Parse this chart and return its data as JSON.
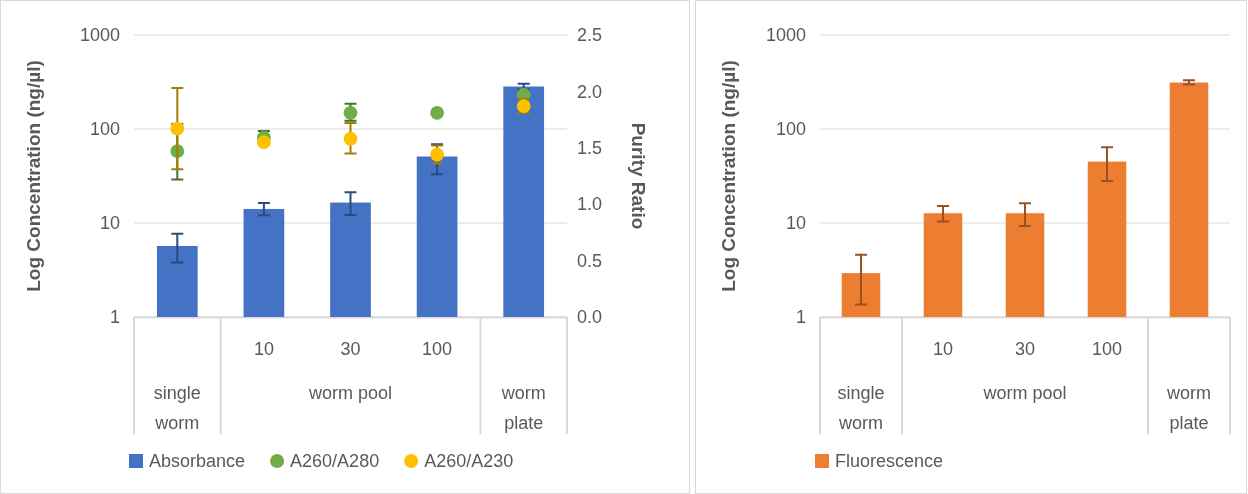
{
  "chart_data": [
    {
      "type": "bar",
      "ylabel": "Log Concentration (ng/µl)",
      "y2label": "Purity Ratio",
      "log": "y",
      "grid": "y",
      "legend": "bottom",
      "marker": "circle",
      "categories": [
        "single worm",
        "10",
        "30",
        "100",
        "worm plate"
      ],
      "annotations": [
        "worm pool"
      ],
      "ylim": [
        1,
        1000
      ],
      "yticks": [
        1,
        10,
        100,
        1000
      ],
      "y2lim": [
        0,
        2.5
      ],
      "y2ticks": [
        {
          "value": 0,
          "label": "0.0"
        },
        {
          "value": 0.5,
          "label": "0.5"
        },
        {
          "value": 1,
          "label": "1.0"
        },
        {
          "value": 1.5,
          "label": "1.5"
        },
        {
          "value": 2,
          "label": "2.0"
        },
        {
          "value": 2.5,
          "label": "2.5"
        }
      ],
      "series": [
        {
          "name": "Absorbance",
          "color": "#4472c4",
          "values": [
            5.7,
            14.1,
            16.5,
            51,
            283
          ],
          "errors": [
            [
              3.8,
              7.7
            ],
            [
              12.1,
              16.3
            ],
            [
              12.2,
              21.3
            ],
            [
              33,
              69
            ],
            [
              263,
              303
            ]
          ]
        },
        {
          "name": "A260/A280",
          "type": "scatter",
          "axis": "y2",
          "color": "#70ad47",
          "values": [
            1.47,
            1.59,
            1.81,
            1.81,
            1.97
          ],
          "errors": [
            [
              1.22,
              1.71
            ],
            [
              1.53,
              1.65
            ],
            [
              1.74,
              1.89
            ],
            null,
            null
          ]
        },
        {
          "name": "A260/A230",
          "type": "scatter",
          "axis": "y2",
          "color": "#ffc000",
          "values": [
            1.67,
            1.55,
            1.58,
            1.44,
            1.87
          ],
          "errors": [
            [
              1.31,
              2.03
            ],
            null,
            [
              1.45,
              1.72
            ],
            [
              1.36,
              1.52
            ],
            [
              1.81,
              1.93
            ]
          ]
        }
      ]
    },
    {
      "type": "bar",
      "ylabel": "Log Concentration (ng/µl)",
      "log": "y",
      "grid": "y",
      "legend": "bottom",
      "categories": [
        "single worm",
        "10",
        "30",
        "100",
        "worm plate"
      ],
      "annotations": [
        "worm pool"
      ],
      "ylim": [
        1,
        1000
      ],
      "yticks": [
        1,
        10,
        100,
        1000
      ],
      "series": [
        {
          "name": "Fluorescence",
          "color": "#ed7d31",
          "values": [
            2.93,
            12.7,
            12.7,
            45,
            312
          ],
          "errors": [
            [
              1.36,
              4.6
            ],
            [
              10.4,
              15.2
            ],
            [
              9.3,
              16.2
            ],
            [
              28,
              64
            ],
            [
              297,
              330
            ]
          ]
        }
      ]
    }
  ]
}
